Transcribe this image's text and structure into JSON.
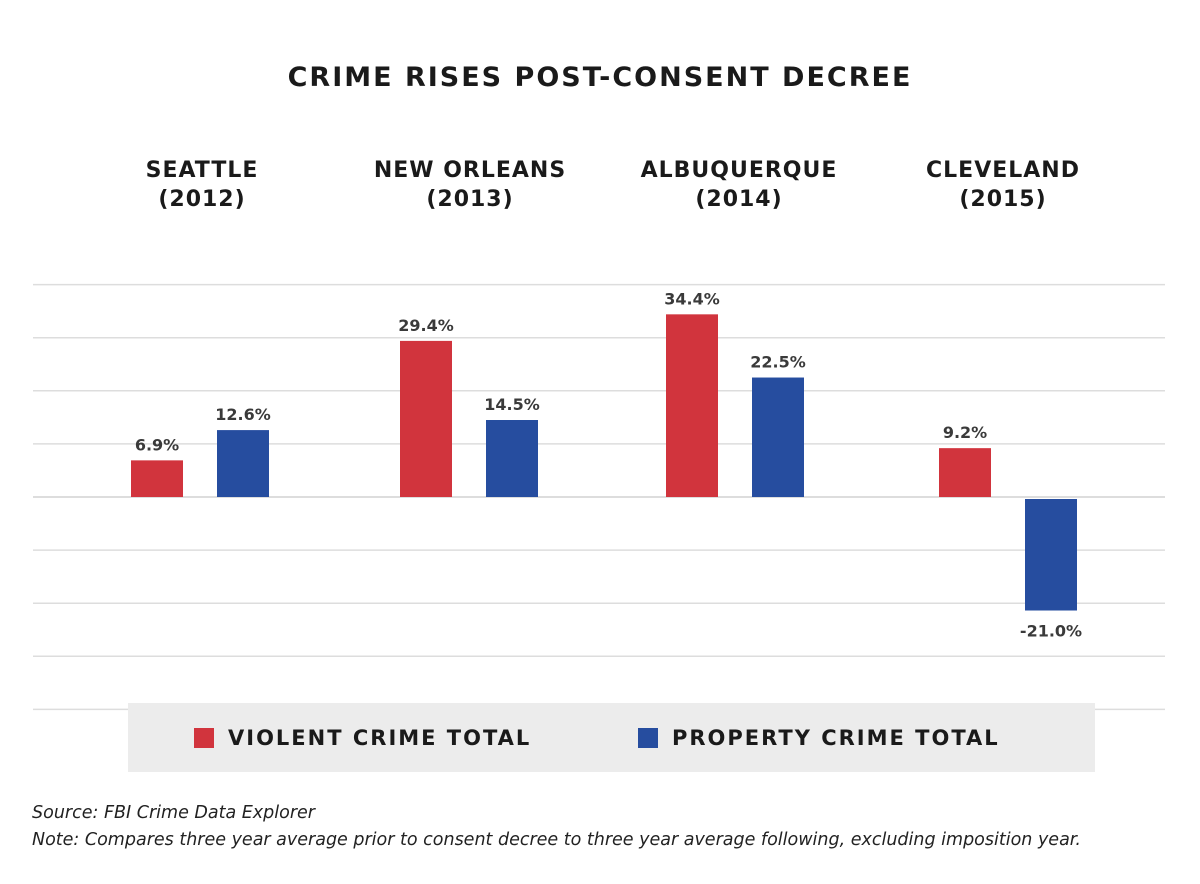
{
  "chart_data": {
    "type": "bar",
    "title": "CRIME RISES POST-CONSENT DECREE",
    "categories": [
      {
        "city": "SEATTLE",
        "year": "(2012)"
      },
      {
        "city": "NEW ORLEANS",
        "year": "(2013)"
      },
      {
        "city": "ALBUQUERQUE",
        "year": "(2014)"
      },
      {
        "city": "CLEVELAND",
        "year": "(2015)"
      }
    ],
    "series": [
      {
        "name": "VIOLENT CRIME TOTAL",
        "color": "#d1343d",
        "values": [
          6.9,
          29.4,
          34.4,
          9.2
        ],
        "labels": [
          "6.9%",
          "29.4%",
          "34.4%",
          "9.2%"
        ]
      },
      {
        "name": "PROPERTY CRIME TOTAL",
        "color": "#264d9f",
        "values": [
          12.6,
          14.5,
          22.5,
          -21.0
        ],
        "labels": [
          "12.6%",
          "14.5%",
          "22.5%",
          "-21.0%"
        ]
      }
    ],
    "ylim": [
      -40,
      40
    ],
    "grid": true,
    "legend_position": "bottom"
  },
  "source": "Source: FBI Crime Data Explorer",
  "note": "Note: Compares three year average prior to consent decree to three year average following, excluding imposition year."
}
